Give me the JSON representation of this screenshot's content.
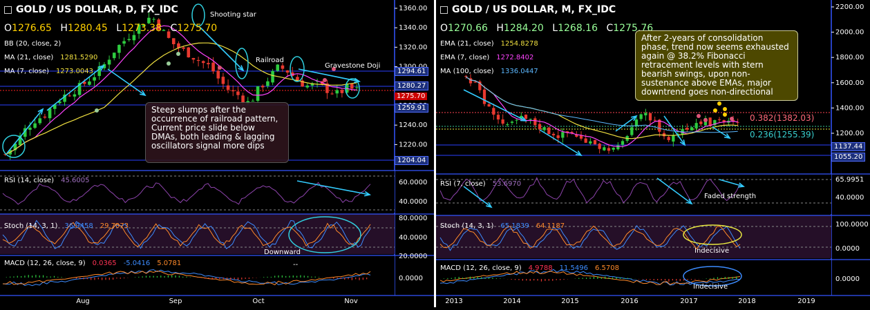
{
  "left": {
    "title": "GOLD / US DOLLAR, D, FX_IDC",
    "ohlc": [
      {
        "k": "O",
        "v": "1276.65"
      },
      {
        "k": "H",
        "v": "1280.45"
      },
      {
        "k": "L",
        "v": "1273.38"
      },
      {
        "k": "C",
        "v": "1275.70"
      }
    ],
    "indicators": [
      {
        "label": "BB (20, close, 2)",
        "value": ""
      },
      {
        "label": "MA (21, close)",
        "value": "1281.5290"
      },
      {
        "label": "MA (7, close)",
        "value": "1273.0043"
      }
    ],
    "price_axis": [
      "1360.00",
      "1340.00",
      "1320.00",
      "1300.00",
      "1280.00",
      "1260.00",
      "1240.00",
      "1220.00"
    ],
    "price_tags": {
      "t1": "1294.61",
      "t2": "1280.27",
      "t3": "1275.70",
      "t4": "1259.91",
      "t5": "1204.04"
    },
    "annotations": {
      "shooting_star": "Shooting star",
      "railroad": "Railroad",
      "gravestone": "Gravestone Doji"
    },
    "note": "Steep slumps after the occurrence of railroad pattern, Current price slide below DMAs, both leading & lagging oscillators signal more dips",
    "rsi": {
      "label": "RSI (14, close)",
      "value": "45.6005",
      "axis": [
        "60.0000",
        "40.0000"
      ]
    },
    "stoch": {
      "label": "Stoch (14, 3, 1)",
      "k": "36.9458",
      "d": "29.7073",
      "axis": [
        "80.0000",
        "40.0000",
        "20.0000"
      ],
      "note": "Downward"
    },
    "macd": {
      "label": "MACD (12, 26, close, 9)",
      "v1": "0.0365",
      "v2": "-5.0416",
      "v3": "5.0781",
      "axis": [
        "0.0000"
      ],
      "extra": "--"
    },
    "x_axis": [
      "Aug",
      "Sep",
      "Oct",
      "Nov"
    ]
  },
  "right": {
    "title": "GOLD / US DOLLAR, M, FX_IDC",
    "ohlc": [
      {
        "k": "O",
        "v": "1270.66"
      },
      {
        "k": "H",
        "v": "1284.20"
      },
      {
        "k": "L",
        "v": "1268.16"
      },
      {
        "k": "C",
        "v": "1275.76"
      }
    ],
    "indicators": [
      {
        "label": "EMA (21, close)",
        "value": "1254.8278"
      },
      {
        "label": "EMA (7, close)",
        "value": "1272.8402"
      },
      {
        "label": "MA (100, close)",
        "value": "1336.0447"
      }
    ],
    "price_axis": [
      "2200.00",
      "2000.00",
      "1800.00",
      "1600.00",
      "1400.00",
      "1200.00"
    ],
    "price_tags": {
      "t1": "1137.44",
      "t2": "1055.20"
    },
    "fib": {
      "f382": "0.382(1382.03)",
      "f236": "0.236(1255.39)"
    },
    "note": "After 2-years of consolidation phase, trend now seems exhausted again @ 38.2% Fibonacci retracement levels with stern bearish swings, upon non-sustenance above EMAs, major downtrend goes non-directional",
    "rsi": {
      "label": "RSI (7, close)",
      "value": "53.6970",
      "axis": [
        "65.9951",
        "40.0000"
      ],
      "note": "Faded strength"
    },
    "stoch": {
      "label": "Stoch (14, 3, 1)",
      "k": "65.1839",
      "d": "64.1187",
      "axis": [
        "100.0000",
        "0.0000"
      ],
      "note": "Indecisive"
    },
    "macd": {
      "label": "MACD (12, 26, close, 9)",
      "v1": "4.9788",
      "v2": "11.5496",
      "v3": "6.5708",
      "axis": [
        "0.0000"
      ],
      "note": "Indecisive"
    },
    "x_axis": [
      "2013",
      "2014",
      "2015",
      "2016",
      "2017",
      "2018",
      "2019"
    ]
  },
  "colors": {
    "up": "#2ecc40",
    "down": "#e8392f",
    "ma7": "#ff44ff",
    "ma21": "#f0e040",
    "bb": "#1e35c8",
    "arrow": "#33ccff",
    "axis": "#3355ff"
  },
  "chart_data": [
    {
      "type": "candlestick",
      "title": "GOLD / US DOLLAR, D, FX_IDC",
      "x": [
        "Aug",
        "Sep",
        "Oct",
        "Nov"
      ],
      "close_path": [
        1210,
        1220,
        1235,
        1245,
        1250,
        1262,
        1270,
        1275,
        1282,
        1290,
        1300,
        1315,
        1325,
        1335,
        1345,
        1352,
        1338,
        1325,
        1318,
        1312,
        1305,
        1300,
        1285,
        1275,
        1270,
        1262,
        1278,
        1288,
        1300,
        1295,
        1285,
        1280,
        1282,
        1276,
        1272,
        1278,
        1276
      ],
      "ylim": [
        1200,
        1365
      ]
    },
    {
      "type": "candlestick",
      "title": "GOLD / US DOLLAR, M, FX_IDC",
      "x": [
        "2013",
        "2014",
        "2015",
        "2016",
        "2017",
        "2018",
        "2019"
      ],
      "close_path": [
        1650,
        1600,
        1550,
        1400,
        1380,
        1300,
        1240,
        1280,
        1320,
        1310,
        1280,
        1250,
        1220,
        1200,
        1180,
        1210,
        1200,
        1150,
        1100,
        1130,
        1080,
        1090,
        1060,
        1120,
        1230,
        1280,
        1340,
        1320,
        1280,
        1180,
        1150,
        1200,
        1250,
        1260,
        1290,
        1300,
        1270,
        1330,
        1290,
        1280,
        1275
      ],
      "ylim": [
        1000,
        2250
      ]
    }
  ]
}
